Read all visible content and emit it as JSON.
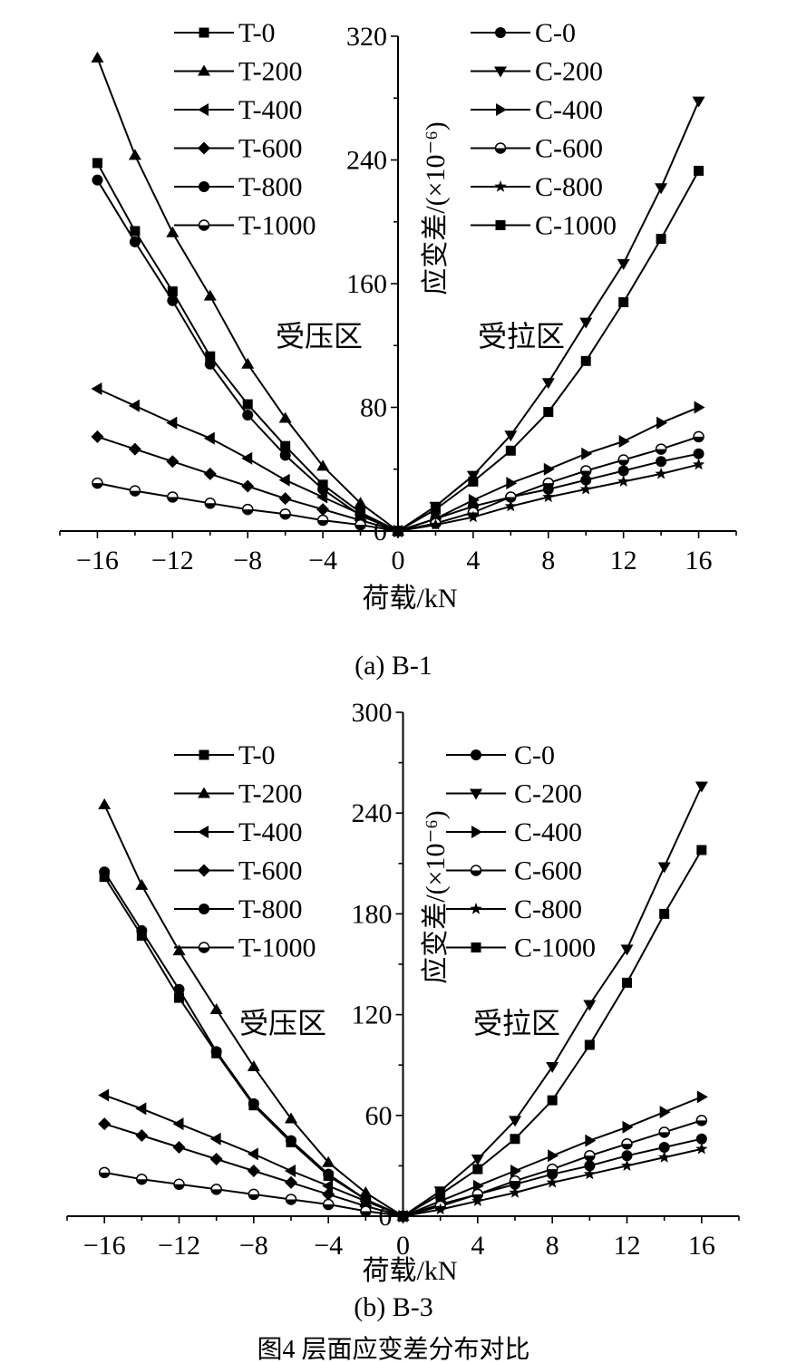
{
  "figure_caption": "图4 层面应变差分布对比",
  "chart_data": [
    {
      "type": "line",
      "caption": "(a) B-1",
      "xlabel": "荷载/kN",
      "ylabel": "应变差/(×10⁻⁶)",
      "xlim": [
        -18,
        18
      ],
      "ylim": [
        0,
        320
      ],
      "xticks": [
        -16,
        -12,
        -8,
        -4,
        0,
        4,
        8,
        12,
        16
      ],
      "yticks": [
        0,
        80,
        160,
        240,
        320
      ],
      "grid": false,
      "region_labels": {
        "left": "受压区",
        "right": "受拉区"
      },
      "legend_placement": "top, two columns",
      "series": [
        {
          "name": "T-0",
          "marker": "square",
          "side": "left",
          "x": [
            -16,
            -14,
            -12,
            -10,
            -8,
            -6,
            -4,
            -2,
            0
          ],
          "y": [
            238,
            194,
            155,
            113,
            82,
            55,
            30,
            12,
            0
          ]
        },
        {
          "name": "T-200",
          "marker": "triangle-up",
          "side": "left",
          "x": [
            -16,
            -14,
            -12,
            -10,
            -8,
            -6,
            -4,
            -2,
            0
          ],
          "y": [
            306,
            243,
            193,
            152,
            108,
            73,
            42,
            18,
            0
          ]
        },
        {
          "name": "T-400",
          "marker": "triangle-left",
          "side": "left",
          "x": [
            -16,
            -14,
            -12,
            -10,
            -8,
            -6,
            -4,
            -2,
            0
          ],
          "y": [
            92,
            81,
            70,
            60,
            47,
            33,
            22,
            11,
            0
          ]
        },
        {
          "name": "T-600",
          "marker": "diamond",
          "side": "left",
          "x": [
            -16,
            -14,
            -12,
            -10,
            -8,
            -6,
            -4,
            -2,
            0
          ],
          "y": [
            61,
            53,
            45,
            37,
            29,
            21,
            14,
            7,
            0
          ]
        },
        {
          "name": "T-800",
          "marker": "circle",
          "side": "left",
          "x": [
            -16,
            -14,
            -12,
            -10,
            -8,
            -6,
            -4,
            -2,
            0
          ],
          "y": [
            227,
            187,
            149,
            108,
            75,
            49,
            27,
            10,
            0
          ]
        },
        {
          "name": "T-1000",
          "marker": "circle-half",
          "side": "left",
          "x": [
            -16,
            -14,
            -12,
            -10,
            -8,
            -6,
            -4,
            -2,
            0
          ],
          "y": [
            31,
            26,
            22,
            18,
            14,
            11,
            7,
            4,
            0
          ]
        },
        {
          "name": "C-0",
          "marker": "circle",
          "side": "right",
          "x": [
            0,
            2,
            4,
            6,
            8,
            10,
            12,
            14,
            16
          ],
          "y": [
            0,
            8,
            16,
            22,
            27,
            33,
            39,
            45,
            50
          ]
        },
        {
          "name": "C-200",
          "marker": "triangle-down",
          "side": "right",
          "x": [
            0,
            2,
            4,
            6,
            8,
            10,
            12,
            14,
            16
          ],
          "y": [
            0,
            16,
            36,
            62,
            96,
            135,
            173,
            222,
            278
          ]
        },
        {
          "name": "C-400",
          "marker": "triangle-right",
          "side": "right",
          "x": [
            0,
            2,
            4,
            6,
            8,
            10,
            12,
            14,
            16
          ],
          "y": [
            0,
            8,
            20,
            31,
            40,
            50,
            58,
            70,
            80
          ]
        },
        {
          "name": "C-600",
          "marker": "circle-half",
          "side": "right",
          "x": [
            0,
            2,
            4,
            6,
            8,
            10,
            12,
            14,
            16
          ],
          "y": [
            0,
            5,
            12,
            22,
            31,
            39,
            46,
            53,
            61
          ]
        },
        {
          "name": "C-800",
          "marker": "star",
          "side": "right",
          "x": [
            0,
            2,
            4,
            6,
            8,
            10,
            12,
            14,
            16
          ],
          "y": [
            0,
            4,
            9,
            16,
            22,
            27,
            32,
            37,
            43
          ]
        },
        {
          "name": "C-1000",
          "marker": "square",
          "side": "right",
          "x": [
            0,
            2,
            4,
            6,
            8,
            10,
            12,
            14,
            16
          ],
          "y": [
            0,
            14,
            32,
            52,
            77,
            110,
            148,
            189,
            233
          ]
        }
      ]
    },
    {
      "type": "line",
      "caption": "(b) B-3",
      "xlabel": "荷载/kN",
      "ylabel": "应变差/(×10⁻⁶)",
      "xlim": [
        -18,
        18
      ],
      "ylim": [
        0,
        300
      ],
      "xticks": [
        -16,
        -12,
        -8,
        -4,
        0,
        4,
        8,
        12,
        16
      ],
      "yticks": [
        0,
        60,
        120,
        180,
        240,
        300
      ],
      "grid": false,
      "region_labels": {
        "left": "受压区",
        "right": "受拉区"
      },
      "legend_placement": "top, two columns",
      "series": [
        {
          "name": "T-0",
          "marker": "square",
          "side": "left",
          "x": [
            -16,
            -14,
            -12,
            -10,
            -8,
            -6,
            -4,
            -2,
            0
          ],
          "y": [
            202,
            167,
            130,
            97,
            66,
            44,
            24,
            10,
            0
          ]
        },
        {
          "name": "T-200",
          "marker": "triangle-up",
          "side": "left",
          "x": [
            -16,
            -14,
            -12,
            -10,
            -8,
            -6,
            -4,
            -2,
            0
          ],
          "y": [
            245,
            197,
            158,
            123,
            89,
            58,
            32,
            14,
            0
          ]
        },
        {
          "name": "T-400",
          "marker": "triangle-left",
          "side": "left",
          "x": [
            -16,
            -14,
            -12,
            -10,
            -8,
            -6,
            -4,
            -2,
            0
          ],
          "y": [
            72,
            64,
            55,
            46,
            37,
            27,
            18,
            9,
            0
          ]
        },
        {
          "name": "T-600",
          "marker": "diamond",
          "side": "left",
          "x": [
            -16,
            -14,
            -12,
            -10,
            -8,
            -6,
            -4,
            -2,
            0
          ],
          "y": [
            55,
            48,
            41,
            34,
            27,
            20,
            13,
            6,
            0
          ]
        },
        {
          "name": "T-800",
          "marker": "circle",
          "side": "left",
          "x": [
            -16,
            -14,
            -12,
            -10,
            -8,
            -6,
            -4,
            -2,
            0
          ],
          "y": [
            205,
            170,
            135,
            98,
            67,
            45,
            25,
            10,
            0
          ]
        },
        {
          "name": "T-1000",
          "marker": "circle-half",
          "side": "left",
          "x": [
            -16,
            -14,
            -12,
            -10,
            -8,
            -6,
            -4,
            -2,
            0
          ],
          "y": [
            26,
            22,
            19,
            16,
            13,
            10,
            7,
            3,
            0
          ]
        },
        {
          "name": "C-0",
          "marker": "circle",
          "side": "right",
          "x": [
            0,
            2,
            4,
            6,
            8,
            10,
            12,
            14,
            16
          ],
          "y": [
            0,
            7,
            13,
            19,
            25,
            30,
            36,
            41,
            46
          ]
        },
        {
          "name": "C-200",
          "marker": "triangle-down",
          "side": "right",
          "x": [
            0,
            2,
            4,
            6,
            8,
            10,
            12,
            14,
            16
          ],
          "y": [
            0,
            15,
            34,
            57,
            89,
            126,
            159,
            208,
            256
          ]
        },
        {
          "name": "C-400",
          "marker": "triangle-right",
          "side": "right",
          "x": [
            0,
            2,
            4,
            6,
            8,
            10,
            12,
            14,
            16
          ],
          "y": [
            0,
            9,
            18,
            27,
            36,
            45,
            53,
            62,
            71
          ]
        },
        {
          "name": "C-600",
          "marker": "circle-half",
          "side": "right",
          "x": [
            0,
            2,
            4,
            6,
            8,
            10,
            12,
            14,
            16
          ],
          "y": [
            0,
            6,
            13,
            21,
            28,
            36,
            43,
            50,
            57
          ]
        },
        {
          "name": "C-800",
          "marker": "star",
          "side": "right",
          "x": [
            0,
            2,
            4,
            6,
            8,
            10,
            12,
            14,
            16
          ],
          "y": [
            0,
            4,
            9,
            14,
            20,
            25,
            30,
            35,
            40
          ]
        },
        {
          "name": "C-1000",
          "marker": "square",
          "side": "right",
          "x": [
            0,
            2,
            4,
            6,
            8,
            10,
            12,
            14,
            16
          ],
          "y": [
            0,
            13,
            28,
            46,
            69,
            102,
            139,
            180,
            218
          ]
        }
      ]
    }
  ]
}
